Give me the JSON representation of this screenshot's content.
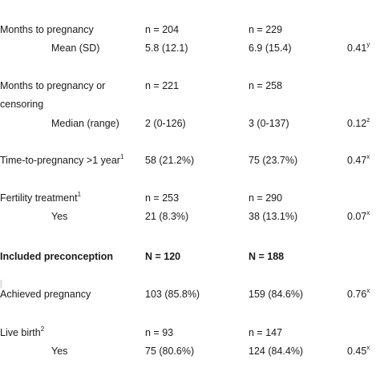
{
  "rows": {
    "months_to_pregnancy": {
      "label": "Months to pregnancy",
      "col1": "n = 204",
      "col2": "n = 229"
    },
    "mean_sd": {
      "label": "Mean (SD)",
      "col1": "5.8 (12.1)",
      "col2": "6.9 (15.4)",
      "p": "0.41",
      "p_sup": "y"
    },
    "months_or_censoring": {
      "label_line1": "Months to pregnancy or",
      "label_line2": "censoring",
      "col1": "n = 221",
      "col2": "n = 258"
    },
    "median_range": {
      "label": "Median (range)",
      "col1": "2 (0-126)",
      "col2": "3 (0-137)",
      "p": "0.12",
      "p_sup": "z"
    },
    "ttp_over_1yr": {
      "label": "Time-to-pregnancy >1 year",
      "label_sup": "1",
      "col1": "58 (21.2%)",
      "col2": "75 (23.7%)",
      "p": "0.47",
      "p_sup": "x"
    },
    "fertility_treatment": {
      "label": "Fertility treatment",
      "label_sup": "1",
      "col1": "n = 253",
      "col2": "n = 290"
    },
    "fertility_yes": {
      "label": "Yes",
      "col1": "21 (8.3%)",
      "col2": "38 (13.1%)",
      "p": "0.07",
      "p_sup": "x"
    },
    "included_preconception": {
      "label": "Included preconception",
      "col1": "N = 120",
      "col2": "N = 188"
    },
    "achieved_pregnancy": {
      "label": "Achieved pregnancy",
      "col1": "103 (85.8%)",
      "col2": "159 (84.6%)",
      "p": "0.76",
      "p_sup": "x"
    },
    "live_birth": {
      "label": "Live birth",
      "label_sup": "2",
      "col1": "n = 93",
      "col2": "n = 147"
    },
    "live_birth_yes": {
      "label": "Yes",
      "col1": "75 (80.6%)",
      "col2": "124 (84.4%)",
      "p": "0.45",
      "p_sup": "x"
    }
  }
}
